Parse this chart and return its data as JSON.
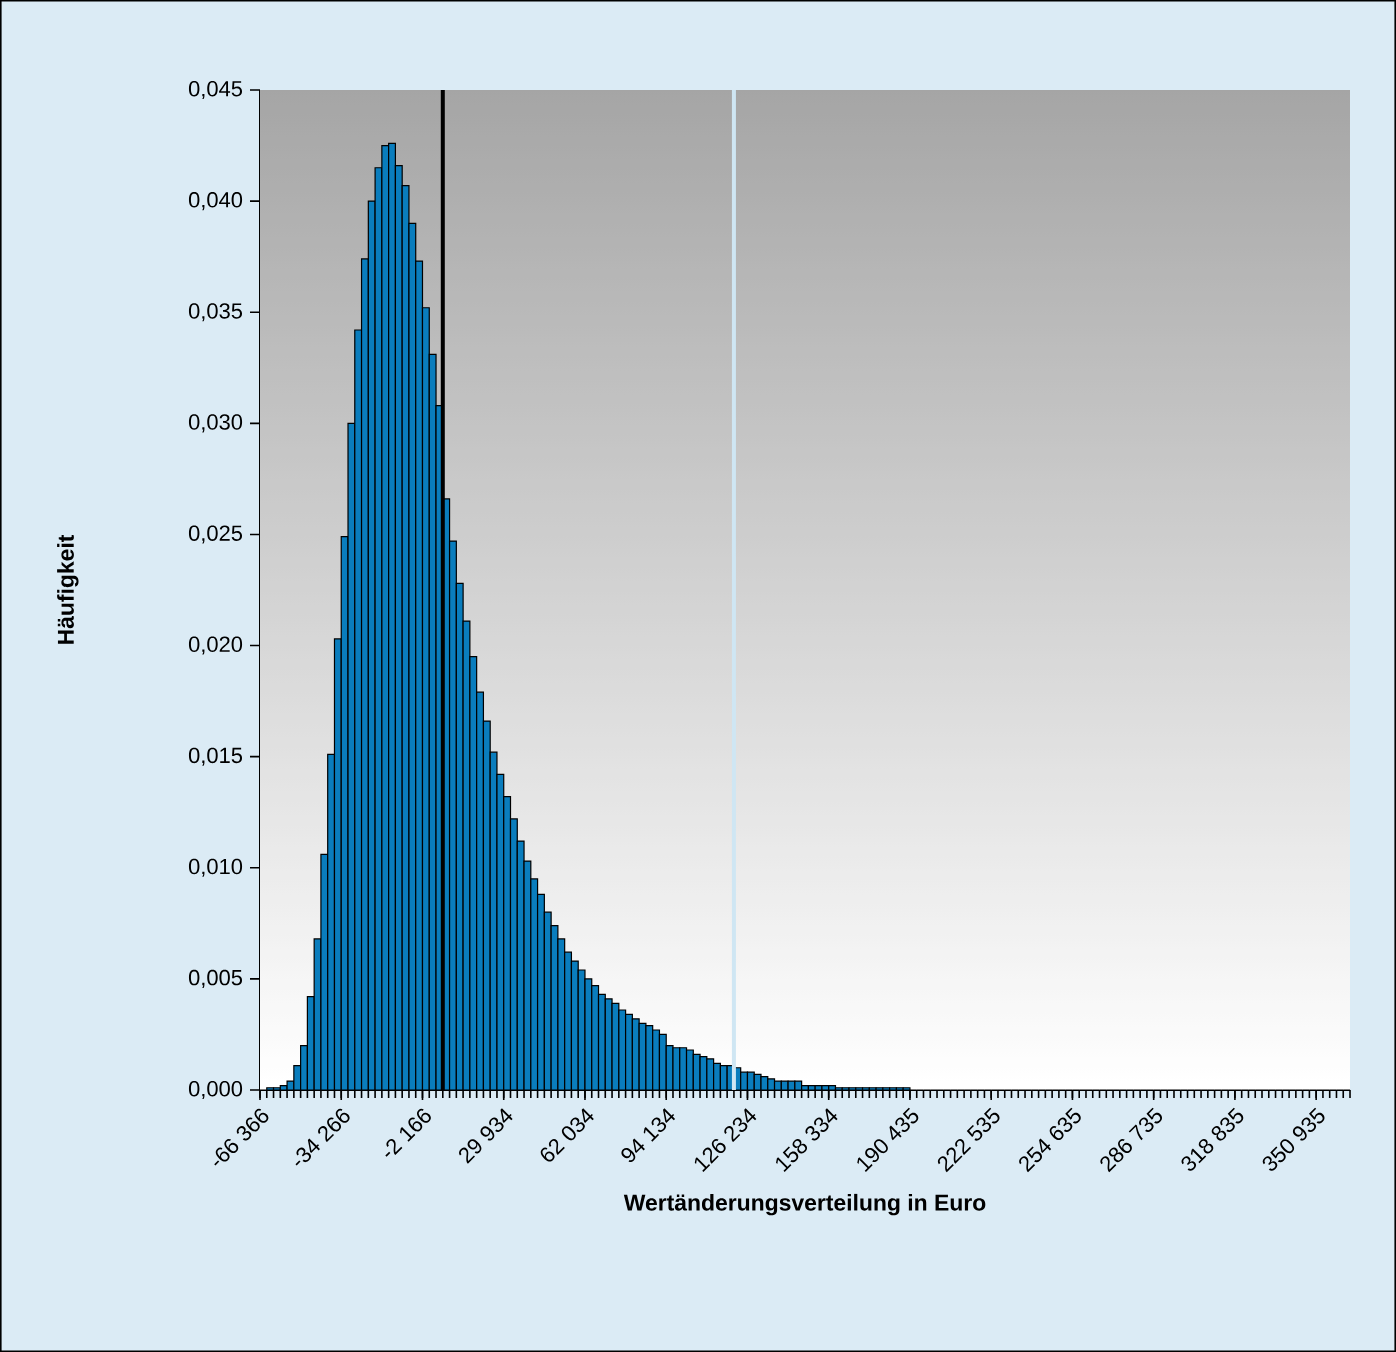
{
  "chart_data": {
    "type": "histogram",
    "xlabel": "Wertänderungsverteilung in Euro",
    "ylabel": "Häufigkeit",
    "color": "#0a7dbd",
    "bins": [
      -66366,
      -63691,
      -61016,
      -58341,
      -55666,
      -52991,
      -50316,
      -47641,
      -44966,
      -42291,
      -39616,
      -36941,
      -34266,
      -31591,
      -28916,
      -26241,
      -23566,
      -20891,
      -18216,
      -15541,
      -12866,
      -10191,
      -7516,
      -4841,
      -2166,
      509,
      3184,
      5859,
      8534,
      11209,
      13884,
      16559,
      19234,
      21909,
      24584,
      27259,
      29934,
      32609,
      35284,
      37959,
      40634,
      43309,
      45984,
      48659,
      51334,
      54009,
      56684,
      59359,
      62034,
      64709,
      67384,
      70059,
      72734,
      75409,
      78084,
      80759,
      83434,
      86109,
      88784,
      91459,
      94134,
      96809,
      99484,
      102159,
      104834,
      107509,
      110184,
      112859,
      115534,
      118209,
      120884,
      123559,
      126234,
      128909,
      131584,
      134259,
      136934,
      139609,
      142284,
      144959,
      147634,
      150309,
      152984,
      155659,
      158334,
      161009,
      163684,
      166359,
      169034,
      171709,
      174384,
      177059,
      179734,
      182409,
      185084,
      187759,
      190434,
      193109,
      195784,
      198459,
      201134,
      203809,
      206484,
      209159,
      211834,
      214509,
      217184,
      219859,
      222534,
      225209,
      227884,
      230559,
      233234,
      235909,
      238584,
      241259,
      243934,
      246609,
      249284,
      251959,
      254634,
      257309,
      259984,
      262659,
      265334,
      268009,
      270684,
      273359,
      276034,
      278709,
      281384,
      284059,
      286734,
      289409,
      292084,
      294759,
      297434,
      300109,
      302784,
      305459,
      308134,
      310809,
      313484,
      316159,
      318834,
      321509,
      324184,
      326859,
      329534,
      332209,
      334884,
      337559,
      340234,
      342909,
      345584,
      348259,
      350934,
      353609,
      356284,
      358959,
      361634,
      364309
    ],
    "values": [
      0,
      0.0001,
      0.0001,
      0.0002,
      0.0004,
      0.0011,
      0.002,
      0.0042,
      0.0068,
      0.0106,
      0.0151,
      0.0203,
      0.0249,
      0.03,
      0.0342,
      0.0374,
      0.04,
      0.0415,
      0.0425,
      0.0426,
      0.0416,
      0.0407,
      0.039,
      0.0373,
      0.0352,
      0.0331,
      0.0308,
      0.0266,
      0.0247,
      0.0228,
      0.0211,
      0.0195,
      0.0179,
      0.0166,
      0.0152,
      0.0142,
      0.0132,
      0.0122,
      0.0112,
      0.0103,
      0.0095,
      0.0088,
      0.008,
      0.0074,
      0.0068,
      0.0062,
      0.0058,
      0.0054,
      0.005,
      0.0047,
      0.0043,
      0.0041,
      0.0039,
      0.0036,
      0.0034,
      0.0032,
      0.003,
      0.0029,
      0.0027,
      0.0025,
      0.002,
      0.0019,
      0.0019,
      0.0018,
      0.0016,
      0.0015,
      0.0014,
      0.0012,
      0.0011,
      0.0011,
      0.001,
      0.0008,
      0.0008,
      0.0007,
      0.0006,
      0.0005,
      0.0004,
      0.0004,
      0.0004,
      0.0004,
      0.0002,
      0.0002,
      0.0002,
      0.0002,
      0.0002,
      0.0001,
      0.0001,
      0.0001,
      0.0001,
      0.0001,
      0.0001,
      0.0001,
      0.0001,
      0.0001,
      0.0001,
      0.0001,
      0,
      0,
      0,
      0,
      0,
      0,
      0,
      0,
      0,
      0,
      0,
      0,
      0,
      0,
      0,
      0,
      0,
      0,
      0,
      0,
      0,
      0,
      0,
      0,
      0,
      0,
      0,
      0,
      0,
      0,
      0,
      0,
      0,
      0,
      0,
      0,
      0,
      0,
      0,
      0,
      0,
      0,
      0,
      0,
      0,
      0,
      0,
      0,
      0,
      0,
      0,
      0,
      0,
      0,
      0,
      0,
      0,
      0,
      0,
      0,
      0,
      0,
      0,
      0,
      0
    ],
    "xlim": [
      -66366,
      364309
    ],
    "ylim": [
      0,
      0.045
    ],
    "xticks": [
      {
        "value": -66366,
        "label": "-66 366"
      },
      {
        "value": -34266,
        "label": "-34 266"
      },
      {
        "value": -2166,
        "label": "-2 166"
      },
      {
        "value": 29934,
        "label": "29 934"
      },
      {
        "value": 62034,
        "label": "62 034"
      },
      {
        "value": 94134,
        "label": "94 134"
      },
      {
        "value": 126234,
        "label": "126 234"
      },
      {
        "value": 158334,
        "label": "158 334"
      },
      {
        "value": 190435,
        "label": "190 435"
      },
      {
        "value": 222535,
        "label": "222 535"
      },
      {
        "value": 254635,
        "label": "254 635"
      },
      {
        "value": 286735,
        "label": "286 735"
      },
      {
        "value": 318835,
        "label": "318 835"
      },
      {
        "value": 350935,
        "label": "350 935"
      }
    ],
    "yticks": [
      {
        "value": 0,
        "label": "0,000"
      },
      {
        "value": 0.005,
        "label": "0,005"
      },
      {
        "value": 0.01,
        "label": "0,010"
      },
      {
        "value": 0.015,
        "label": "0,015"
      },
      {
        "value": 0.02,
        "label": "0,020"
      },
      {
        "value": 0.025,
        "label": "0,025"
      },
      {
        "value": 0.03,
        "label": "0,030"
      },
      {
        "value": 0.035,
        "label": "0,035"
      },
      {
        "value": 0.04,
        "label": "0,040"
      },
      {
        "value": 0.045,
        "label": "0,045"
      }
    ],
    "ref_lines": [
      {
        "axis": "x",
        "value": 5859,
        "color": "#000000"
      },
      {
        "axis": "x",
        "value": 120884,
        "color": "#cfe6f3"
      }
    ]
  }
}
